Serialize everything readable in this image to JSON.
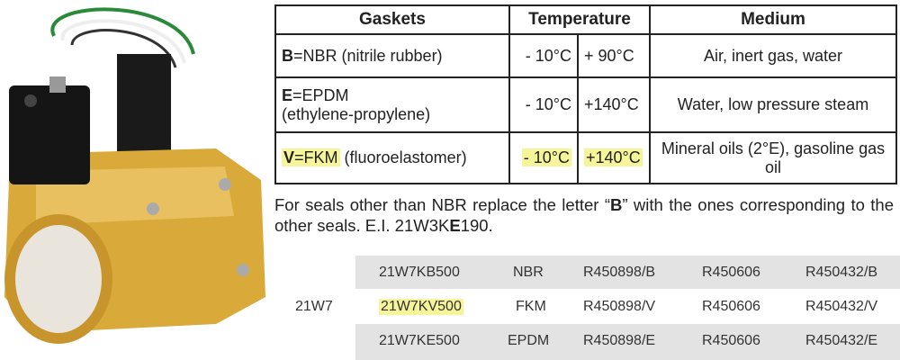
{
  "gasket_table": {
    "headers": {
      "gaskets": "Gaskets",
      "temperature": "Temperature",
      "medium": "Medium"
    },
    "rows": [
      {
        "code": "B",
        "name": "=NBR",
        "desc": " (nitrile rubber)",
        "t_min": "- 10°C",
        "t_max": "+ 90°C",
        "medium": "Air, inert gas, water",
        "highlight": false
      },
      {
        "code": "E",
        "name": "=EPDM",
        "desc": "(ethylene-propylene)",
        "t_min": "- 10°C",
        "t_max": "+140°C",
        "medium": "Water, low pressure steam",
        "highlight": false
      },
      {
        "code": "V",
        "name": "=FKM",
        "desc": " (fluoroelastomer)",
        "t_min": "- 10°C",
        "t_max": "+140°C",
        "medium": "Mineral oils (2°E), gasoline gas oil",
        "highlight": true
      }
    ]
  },
  "note": {
    "part1": "For seals other than NBR replace the letter “",
    "bold1": "B",
    "part2": "” with the ones corresponding to the other seals. E.I. 21W3K",
    "bold2": "E",
    "part3": "190."
  },
  "codes": {
    "family": "21W7",
    "rows": [
      {
        "model": "21W7KB500",
        "seal": "NBR",
        "kit1": "R450898/B",
        "kit2": "R450606",
        "kit3": "R450432/B"
      },
      {
        "model": "21W7KV500",
        "seal": "FKM",
        "kit1": "R450898/V",
        "kit2": "R450606",
        "kit3": "R450432/V"
      },
      {
        "model": "21W7KE500",
        "seal": "EPDM",
        "kit1": "R450898/E",
        "kit2": "R450606",
        "kit3": "R450432/E"
      }
    ]
  },
  "colors": {
    "highlight": "#f7f59a",
    "row_grey": "#e3e3e3",
    "brass": "#d9a93a"
  }
}
